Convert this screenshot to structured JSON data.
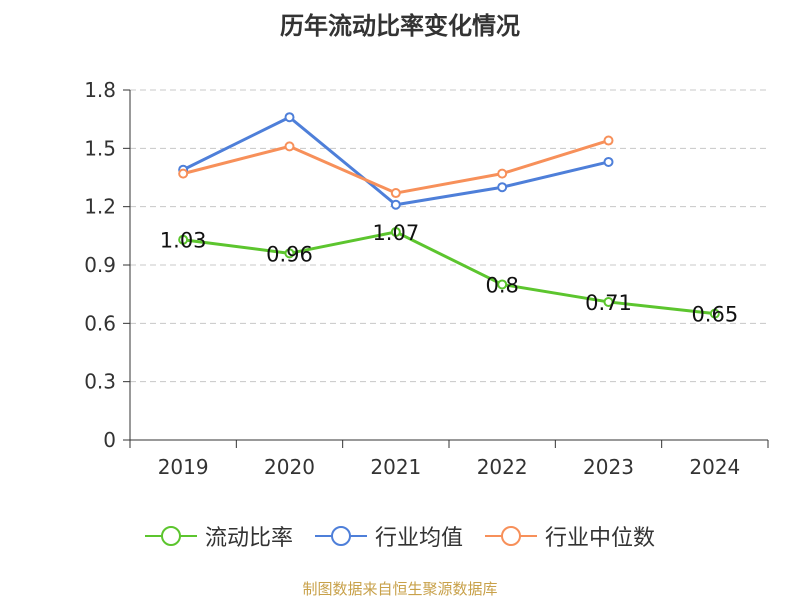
{
  "chart_data": {
    "type": "line",
    "title": "历年流动比率变化情况",
    "categories": [
      "2019",
      "2020",
      "2021",
      "2022",
      "2023",
      "2024"
    ],
    "ylim": [
      0,
      1.8
    ],
    "yticks": [
      0,
      0.3,
      0.6,
      0.9,
      1.2,
      1.5,
      1.8
    ],
    "ytick_labels": [
      "0",
      "0.3",
      "0.6",
      "0.9",
      "1.2",
      "1.5",
      "1.8"
    ],
    "grid": true,
    "legend_position": "bottom",
    "series": [
      {
        "name": "流动比率",
        "color": "#5cc52e",
        "values": [
          1.03,
          0.96,
          1.07,
          0.8,
          0.71,
          0.65
        ],
        "labels": [
          "1.03",
          "0.96",
          "1.07",
          "0.8",
          "0.71",
          "0.65"
        ]
      },
      {
        "name": "行业均值",
        "color": "#4e7fd9",
        "values": [
          1.39,
          1.66,
          1.21,
          1.3,
          1.43,
          null
        ]
      },
      {
        "name": "行业中位数",
        "color": "#f7905a",
        "values": [
          1.37,
          1.51,
          1.27,
          1.37,
          1.54,
          null
        ]
      }
    ]
  },
  "source": "制图数据来自恒生聚源数据库"
}
